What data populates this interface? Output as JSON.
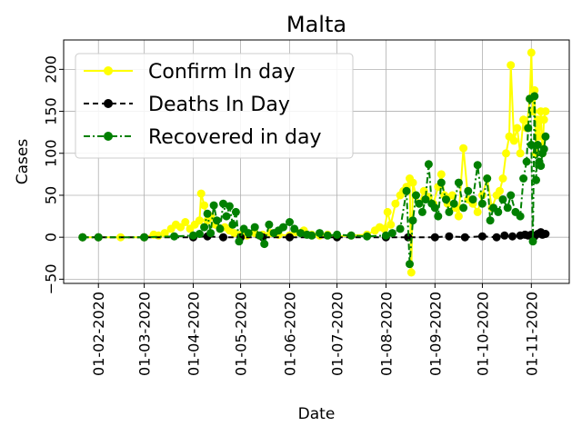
{
  "chart_data": {
    "type": "line",
    "title": "Malta",
    "xlabel": "Date",
    "ylabel": "Cases",
    "x_type": "date",
    "xlim": [
      "2020-01-10",
      "2020-11-25"
    ],
    "ylim": [
      -55,
      235
    ],
    "yticks": [
      -50,
      0,
      50,
      100,
      150,
      200
    ],
    "xticks": [
      "2020-02-01",
      "2020-03-01",
      "2020-04-01",
      "2020-05-01",
      "2020-06-01",
      "2020-07-01",
      "2020-08-01",
      "2020-09-01",
      "2020-10-01",
      "2020-11-01"
    ],
    "xtick_labels": [
      "01-02-2020",
      "01-03-2020",
      "01-04-2020",
      "01-05-2020",
      "01-06-2020",
      "01-07-2020",
      "01-08-2020",
      "01-09-2020",
      "01-10-2020",
      "01-11-2020"
    ],
    "grid": true,
    "legend_position": "top-left",
    "series": [
      {
        "name": "Confirm In day",
        "color": "#ffff00",
        "linestyle": "solid",
        "marker": "circle",
        "points": [
          [
            "2020-01-22",
            0
          ],
          [
            "2020-02-01",
            0
          ],
          [
            "2020-02-15",
            0
          ],
          [
            "2020-03-01",
            0
          ],
          [
            "2020-03-07",
            3
          ],
          [
            "2020-03-10",
            2
          ],
          [
            "2020-03-14",
            5
          ],
          [
            "2020-03-18",
            10
          ],
          [
            "2020-03-21",
            15
          ],
          [
            "2020-03-24",
            12
          ],
          [
            "2020-03-27",
            18
          ],
          [
            "2020-03-30",
            10
          ],
          [
            "2020-04-02",
            15
          ],
          [
            "2020-04-05",
            20
          ],
          [
            "2020-04-06",
            52
          ],
          [
            "2020-04-08",
            38
          ],
          [
            "2020-04-10",
            20
          ],
          [
            "2020-04-12",
            25
          ],
          [
            "2020-04-15",
            15
          ],
          [
            "2020-04-18",
            10
          ],
          [
            "2020-04-21",
            12
          ],
          [
            "2020-04-24",
            8
          ],
          [
            "2020-04-27",
            5
          ],
          [
            "2020-05-01",
            3
          ],
          [
            "2020-05-05",
            2
          ],
          [
            "2020-05-10",
            5
          ],
          [
            "2020-05-15",
            3
          ],
          [
            "2020-05-20",
            5
          ],
          [
            "2020-05-25",
            3
          ],
          [
            "2020-06-01",
            2
          ],
          [
            "2020-06-05",
            6
          ],
          [
            "2020-06-10",
            8
          ],
          [
            "2020-06-15",
            3
          ],
          [
            "2020-06-20",
            2
          ],
          [
            "2020-06-25",
            3
          ],
          [
            "2020-07-01",
            1
          ],
          [
            "2020-07-10",
            2
          ],
          [
            "2020-07-20",
            3
          ],
          [
            "2020-07-25",
            8
          ],
          [
            "2020-07-28",
            12
          ],
          [
            "2020-07-31",
            10
          ],
          [
            "2020-08-02",
            30
          ],
          [
            "2020-08-04",
            15
          ],
          [
            "2020-08-07",
            40
          ],
          [
            "2020-08-10",
            50
          ],
          [
            "2020-08-12",
            55
          ],
          [
            "2020-08-14",
            60
          ],
          [
            "2020-08-16",
            70
          ],
          [
            "2020-08-17",
            -42
          ],
          [
            "2020-08-18",
            65
          ],
          [
            "2020-08-20",
            50
          ],
          [
            "2020-08-22",
            40
          ],
          [
            "2020-08-25",
            55
          ],
          [
            "2020-08-28",
            48
          ],
          [
            "2020-08-31",
            40
          ],
          [
            "2020-09-03",
            60
          ],
          [
            "2020-09-05",
            75
          ],
          [
            "2020-09-07",
            50
          ],
          [
            "2020-09-09",
            40
          ],
          [
            "2020-09-12",
            50
          ],
          [
            "2020-09-14",
            35
          ],
          [
            "2020-09-16",
            25
          ],
          [
            "2020-09-19",
            106
          ],
          [
            "2020-09-22",
            45
          ],
          [
            "2020-09-25",
            40
          ],
          [
            "2020-09-28",
            30
          ],
          [
            "2020-10-01",
            50
          ],
          [
            "2020-10-04",
            70
          ],
          [
            "2020-10-07",
            35
          ],
          [
            "2020-10-10",
            50
          ],
          [
            "2020-10-12",
            55
          ],
          [
            "2020-10-14",
            70
          ],
          [
            "2020-10-16",
            100
          ],
          [
            "2020-10-18",
            120
          ],
          [
            "2020-10-19",
            205
          ],
          [
            "2020-10-21",
            115
          ],
          [
            "2020-10-23",
            130
          ],
          [
            "2020-10-25",
            100
          ],
          [
            "2020-10-27",
            140
          ],
          [
            "2020-10-29",
            130
          ],
          [
            "2020-10-31",
            165
          ],
          [
            "2020-11-01",
            220
          ],
          [
            "2020-11-02",
            150
          ],
          [
            "2020-11-03",
            175
          ],
          [
            "2020-11-04",
            100
          ],
          [
            "2020-11-05",
            140
          ],
          [
            "2020-11-06",
            120
          ],
          [
            "2020-11-07",
            150
          ],
          [
            "2020-11-08",
            100
          ],
          [
            "2020-11-09",
            140
          ],
          [
            "2020-11-10",
            150
          ]
        ]
      },
      {
        "name": "Deaths In Day",
        "color": "#000000",
        "linestyle": "dashed",
        "marker": "circle",
        "points": [
          [
            "2020-01-22",
            0
          ],
          [
            "2020-02-01",
            0
          ],
          [
            "2020-03-01",
            0
          ],
          [
            "2020-04-01",
            0
          ],
          [
            "2020-04-10",
            1
          ],
          [
            "2020-04-20",
            0
          ],
          [
            "2020-05-01",
            0
          ],
          [
            "2020-05-15",
            0
          ],
          [
            "2020-06-01",
            0
          ],
          [
            "2020-07-01",
            0
          ],
          [
            "2020-08-01",
            0
          ],
          [
            "2020-08-15",
            0
          ],
          [
            "2020-09-01",
            0
          ],
          [
            "2020-09-10",
            1
          ],
          [
            "2020-09-20",
            0
          ],
          [
            "2020-10-01",
            1
          ],
          [
            "2020-10-10",
            0
          ],
          [
            "2020-10-15",
            2
          ],
          [
            "2020-10-20",
            1
          ],
          [
            "2020-10-25",
            2
          ],
          [
            "2020-10-28",
            3
          ],
          [
            "2020-10-30",
            2
          ],
          [
            "2020-11-01",
            3
          ],
          [
            "2020-11-03",
            1
          ],
          [
            "2020-11-05",
            4
          ],
          [
            "2020-11-07",
            6
          ],
          [
            "2020-11-08",
            3
          ],
          [
            "2020-11-10",
            4
          ]
        ]
      },
      {
        "name": "Recovered in day",
        "color": "#008000",
        "linestyle": "dashdot",
        "marker": "circle",
        "points": [
          [
            "2020-01-22",
            0
          ],
          [
            "2020-02-01",
            0
          ],
          [
            "2020-03-01",
            0
          ],
          [
            "2020-03-20",
            1
          ],
          [
            "2020-04-01",
            2
          ],
          [
            "2020-04-05",
            4
          ],
          [
            "2020-04-08",
            12
          ],
          [
            "2020-04-10",
            28
          ],
          [
            "2020-04-12",
            5
          ],
          [
            "2020-04-14",
            38
          ],
          [
            "2020-04-16",
            20
          ],
          [
            "2020-04-18",
            10
          ],
          [
            "2020-04-20",
            40
          ],
          [
            "2020-04-22",
            25
          ],
          [
            "2020-04-24",
            37
          ],
          [
            "2020-04-26",
            15
          ],
          [
            "2020-04-28",
            30
          ],
          [
            "2020-04-30",
            -5
          ],
          [
            "2020-05-03",
            10
          ],
          [
            "2020-05-06",
            5
          ],
          [
            "2020-05-10",
            12
          ],
          [
            "2020-05-13",
            2
          ],
          [
            "2020-05-16",
            -8
          ],
          [
            "2020-05-19",
            15
          ],
          [
            "2020-05-22",
            5
          ],
          [
            "2020-05-25",
            8
          ],
          [
            "2020-05-28",
            12
          ],
          [
            "2020-06-01",
            18
          ],
          [
            "2020-06-04",
            10
          ],
          [
            "2020-06-08",
            5
          ],
          [
            "2020-06-12",
            3
          ],
          [
            "2020-06-15",
            2
          ],
          [
            "2020-06-20",
            5
          ],
          [
            "2020-06-25",
            2
          ],
          [
            "2020-07-01",
            3
          ],
          [
            "2020-07-10",
            2
          ],
          [
            "2020-07-20",
            1
          ],
          [
            "2020-08-01",
            2
          ],
          [
            "2020-08-05",
            5
          ],
          [
            "2020-08-10",
            10
          ],
          [
            "2020-08-14",
            55
          ],
          [
            "2020-08-16",
            -32
          ],
          [
            "2020-08-18",
            20
          ],
          [
            "2020-08-20",
            50
          ],
          [
            "2020-08-22",
            40
          ],
          [
            "2020-08-24",
            30
          ],
          [
            "2020-08-26",
            45
          ],
          [
            "2020-08-28",
            87
          ],
          [
            "2020-08-30",
            40
          ],
          [
            "2020-09-01",
            35
          ],
          [
            "2020-09-03",
            25
          ],
          [
            "2020-09-05",
            65
          ],
          [
            "2020-09-08",
            45
          ],
          [
            "2020-09-10",
            30
          ],
          [
            "2020-09-13",
            40
          ],
          [
            "2020-09-16",
            65
          ],
          [
            "2020-09-19",
            35
          ],
          [
            "2020-09-22",
            55
          ],
          [
            "2020-09-25",
            45
          ],
          [
            "2020-09-28",
            86
          ],
          [
            "2020-10-01",
            40
          ],
          [
            "2020-10-04",
            70
          ],
          [
            "2020-10-06",
            20
          ],
          [
            "2020-10-08",
            35
          ],
          [
            "2020-10-11",
            30
          ],
          [
            "2020-10-14",
            45
          ],
          [
            "2020-10-17",
            35
          ],
          [
            "2020-10-19",
            50
          ],
          [
            "2020-10-22",
            30
          ],
          [
            "2020-10-25",
            25
          ],
          [
            "2020-10-27",
            70
          ],
          [
            "2020-10-29",
            90
          ],
          [
            "2020-10-30",
            130
          ],
          [
            "2020-10-31",
            165
          ],
          [
            "2020-11-01",
            110
          ],
          [
            "2020-11-02",
            -5
          ],
          [
            "2020-11-03",
            168
          ],
          [
            "2020-11-04",
            68
          ],
          [
            "2020-11-05",
            110
          ],
          [
            "2020-11-06",
            90
          ],
          [
            "2020-11-07",
            85
          ],
          [
            "2020-11-08",
            100
          ],
          [
            "2020-11-09",
            105
          ],
          [
            "2020-11-10",
            120
          ]
        ]
      }
    ]
  }
}
